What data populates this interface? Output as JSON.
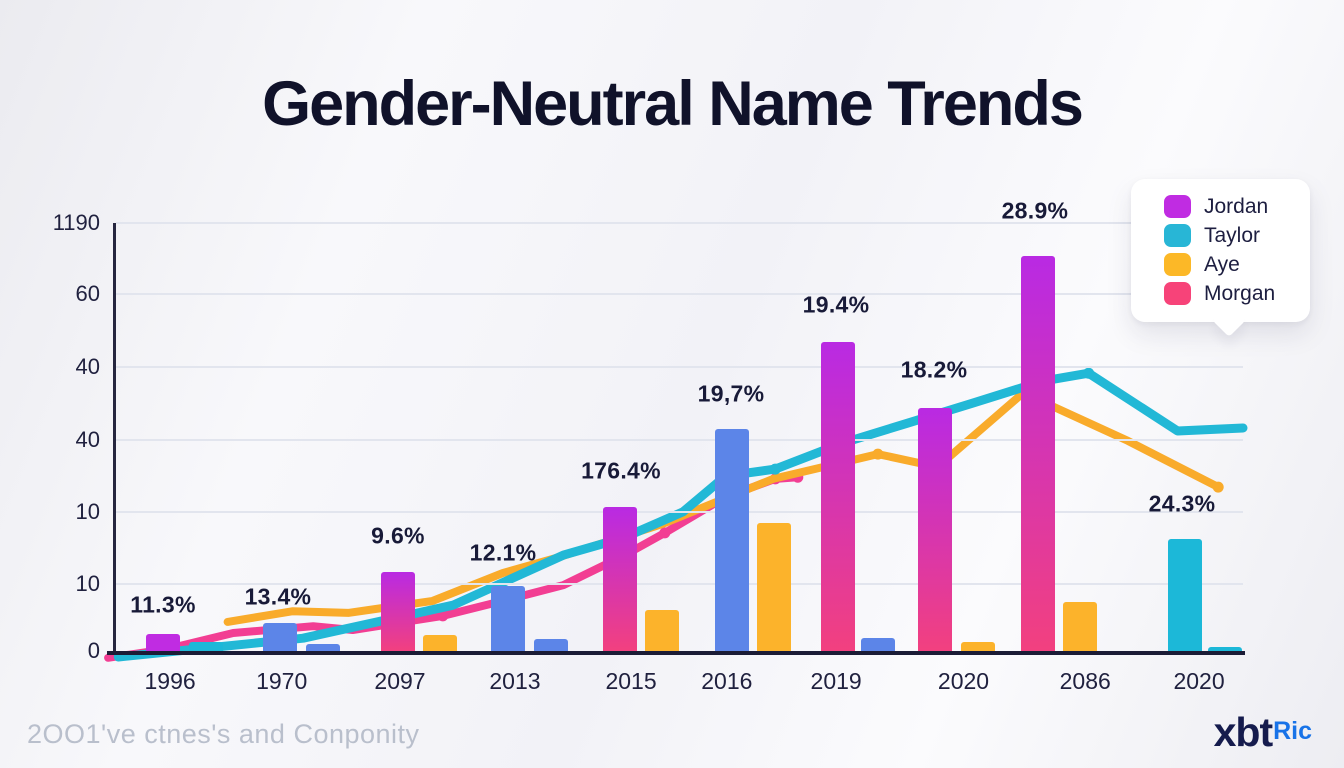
{
  "title": "Gender-Neutral Name Trends",
  "legend": {
    "items": [
      {
        "label": "Jordan",
        "color": "#c02ce2"
      },
      {
        "label": "Taylor",
        "color": "#28b6d6"
      },
      {
        "label": "Aye",
        "color": "#fcb827"
      },
      {
        "label": "Morgan",
        "color": "#f74379"
      }
    ]
  },
  "footer": {
    "caption": "2OO1've ctnes's and Conponity",
    "logo_main": "xbt",
    "logo_accent": "Ric"
  },
  "chart_data": {
    "type": "bar",
    "subtype": "grouped bars with overlaid line series (tooltip-style legend)",
    "title": "Gender-Neutral Name Trends",
    "xlabel": "",
    "ylabel": "",
    "grid": true,
    "legend_position": "top-right floating card",
    "categories": [
      {
        "label": "1996",
        "x_pct": 4.8
      },
      {
        "label": "1970",
        "x_pct": 14.7
      },
      {
        "label": "2097",
        "x_pct": 25.2
      },
      {
        "label": "2013",
        "x_pct": 35.4
      },
      {
        "label": "2015",
        "x_pct": 45.7
      },
      {
        "label": "2016",
        "x_pct": 54.2
      },
      {
        "label": "2019",
        "x_pct": 63.9
      },
      {
        "label": "2020",
        "x_pct": 75.2
      },
      {
        "label": "2086",
        "x_pct": 86.0
      },
      {
        "label": "2020",
        "x_pct": 96.1
      }
    ],
    "y_axis": {
      "ticks": [
        {
          "label": "1190",
          "pct": 0
        },
        {
          "label": "60",
          "pct": 16.59
        },
        {
          "label": "40",
          "pct": 33.64
        },
        {
          "label": "40",
          "pct": 50.7
        },
        {
          "label": "10",
          "pct": 67.52
        },
        {
          "label": "10",
          "pct": 84.35
        },
        {
          "label": "0",
          "pct": 100
        }
      ]
    },
    "colors": {
      "purple": "#c02ce2",
      "gradient": "linear-gradient(180deg,#b92ae3 0%,#f2407f 100%)",
      "cyan": "#1cb8d8",
      "blue": "#5c85e8",
      "orange": "#fcb32b"
    },
    "bars": [
      {
        "group": 0,
        "color": "purple",
        "left_pct": 2.66,
        "height_pct": 4.0
      },
      {
        "group": 0,
        "color": "cyan",
        "left_pct": 6.48,
        "height_pct": 2.1
      },
      {
        "group": 1,
        "color": "blue",
        "left_pct": 13.04,
        "height_pct": 6.5
      },
      {
        "group": 1,
        "color": "blue",
        "left_pct": 16.86,
        "height_pct": 1.6
      },
      {
        "group": 2,
        "color": "gradient",
        "left_pct": 23.51,
        "height_pct": 18.5
      },
      {
        "group": 2,
        "color": "orange",
        "left_pct": 27.24,
        "height_pct": 3.7
      },
      {
        "group": 3,
        "color": "blue",
        "left_pct": 33.27,
        "height_pct": 15.2
      },
      {
        "group": 3,
        "color": "blue",
        "left_pct": 37.09,
        "height_pct": 2.8
      },
      {
        "group": 4,
        "color": "gradient",
        "left_pct": 43.21,
        "height_pct": 33.6
      },
      {
        "group": 4,
        "color": "orange",
        "left_pct": 46.94,
        "height_pct": 9.6
      },
      {
        "group": 5,
        "color": "blue",
        "left_pct": 53.15,
        "height_pct": 51.9
      },
      {
        "group": 5,
        "color": "orange",
        "left_pct": 56.88,
        "height_pct": 29.9
      },
      {
        "group": 6,
        "color": "gradient",
        "left_pct": 62.56,
        "height_pct": 72.2
      },
      {
        "group": 6,
        "color": "blue",
        "left_pct": 66.1,
        "height_pct": 3.0
      },
      {
        "group": 7,
        "color": "gradient",
        "left_pct": 71.16,
        "height_pct": 56.8
      },
      {
        "group": 7,
        "color": "orange",
        "left_pct": 74.98,
        "height_pct": 2.1
      },
      {
        "group": 8,
        "color": "gradient",
        "left_pct": 80.3,
        "height_pct": 92.3
      },
      {
        "group": 8,
        "color": "orange",
        "left_pct": 84.03,
        "height_pct": 11.4
      },
      {
        "group": 9,
        "color": "cyan",
        "left_pct": 93.35,
        "height_pct": 26.2
      },
      {
        "group": 9,
        "color": "cyan",
        "left_pct": 96.89,
        "height_pct": 0.9
      }
    ],
    "value_labels": [
      {
        "text": "11.3%",
        "x_pct": 4.17,
        "y_pct": 89.25
      },
      {
        "text": "13.4%",
        "x_pct": 14.37,
        "y_pct": 87.38
      },
      {
        "text": "9.6%",
        "x_pct": 25.02,
        "y_pct": 73.13
      },
      {
        "text": "12.1%",
        "x_pct": 34.34,
        "y_pct": 77.1
      },
      {
        "text": "176.4%",
        "x_pct": 44.81,
        "y_pct": 57.94
      },
      {
        "text": "19,7%",
        "x_pct": 54.57,
        "y_pct": 39.95
      },
      {
        "text": "19.4%",
        "x_pct": 63.89,
        "y_pct": 19.16
      },
      {
        "text": "18.2%",
        "x_pct": 72.58,
        "y_pct": 34.35
      },
      {
        "text": "28.9%",
        "x_pct": 81.54,
        "y_pct": -2.8
      },
      {
        "text": "24.3%",
        "x_pct": 94.59,
        "y_pct": 65.65
      }
    ],
    "lines": [
      {
        "name": "Morgan",
        "color": "#f23e93",
        "width": 8,
        "points_pct": [
          [
            -0.7,
            101.6
          ],
          [
            4.6,
            99.5
          ],
          [
            10.4,
            95.8
          ],
          [
            17.5,
            94.2
          ],
          [
            21.0,
            95.1
          ],
          [
            29.0,
            91.8
          ],
          [
            34.6,
            88.1
          ],
          [
            39.7,
            84.6
          ],
          [
            45.0,
            77.8
          ],
          [
            48.7,
            72.4
          ],
          [
            54.1,
            64.0
          ],
          [
            58.5,
            59.8
          ],
          [
            60.5,
            59.4
          ]
        ],
        "markers": [
          [
            29.0,
            91.8
          ],
          [
            34.6,
            88.1
          ],
          [
            48.7,
            72.4
          ],
          [
            54.1,
            64.0
          ],
          [
            58.5,
            59.8
          ],
          [
            60.5,
            59.4
          ]
        ]
      },
      {
        "name": "Aye",
        "color": "#f9ab2b",
        "width": 8,
        "points_pct": [
          [
            9.9,
            93.2
          ],
          [
            15.7,
            90.7
          ],
          [
            20.6,
            91.1
          ],
          [
            28.1,
            88.3
          ],
          [
            34.3,
            81.8
          ],
          [
            39.4,
            78.0
          ],
          [
            48.5,
            70.3
          ],
          [
            58.3,
            59.8
          ],
          [
            67.6,
            54.0
          ],
          [
            72.9,
            57.0
          ],
          [
            80.5,
            39.7
          ],
          [
            89.8,
            50.9
          ],
          [
            97.8,
            61.7
          ]
        ],
        "markers": [
          [
            67.6,
            54.0
          ],
          [
            72.9,
            57.0
          ],
          [
            80.5,
            39.7
          ],
          [
            97.8,
            61.7
          ]
        ]
      },
      {
        "name": "Taylor",
        "color": "#22b8d6",
        "width": 9,
        "points_pct": [
          [
            0.2,
            101.4
          ],
          [
            16.6,
            97.0
          ],
          [
            29.9,
            89.3
          ],
          [
            39.7,
            77.6
          ],
          [
            45.0,
            73.6
          ],
          [
            50.3,
            67.5
          ],
          [
            54.1,
            59.1
          ],
          [
            58.5,
            57.5
          ],
          [
            64.5,
            51.4
          ],
          [
            70.3,
            46.7
          ],
          [
            76.0,
            42.1
          ],
          [
            82.3,
            36.9
          ],
          [
            86.3,
            35.1
          ],
          [
            94.2,
            48.6
          ],
          [
            100,
            47.9
          ]
        ],
        "markers": [
          [
            58.5,
            57.5
          ],
          [
            86.3,
            35.1
          ]
        ]
      }
    ]
  }
}
